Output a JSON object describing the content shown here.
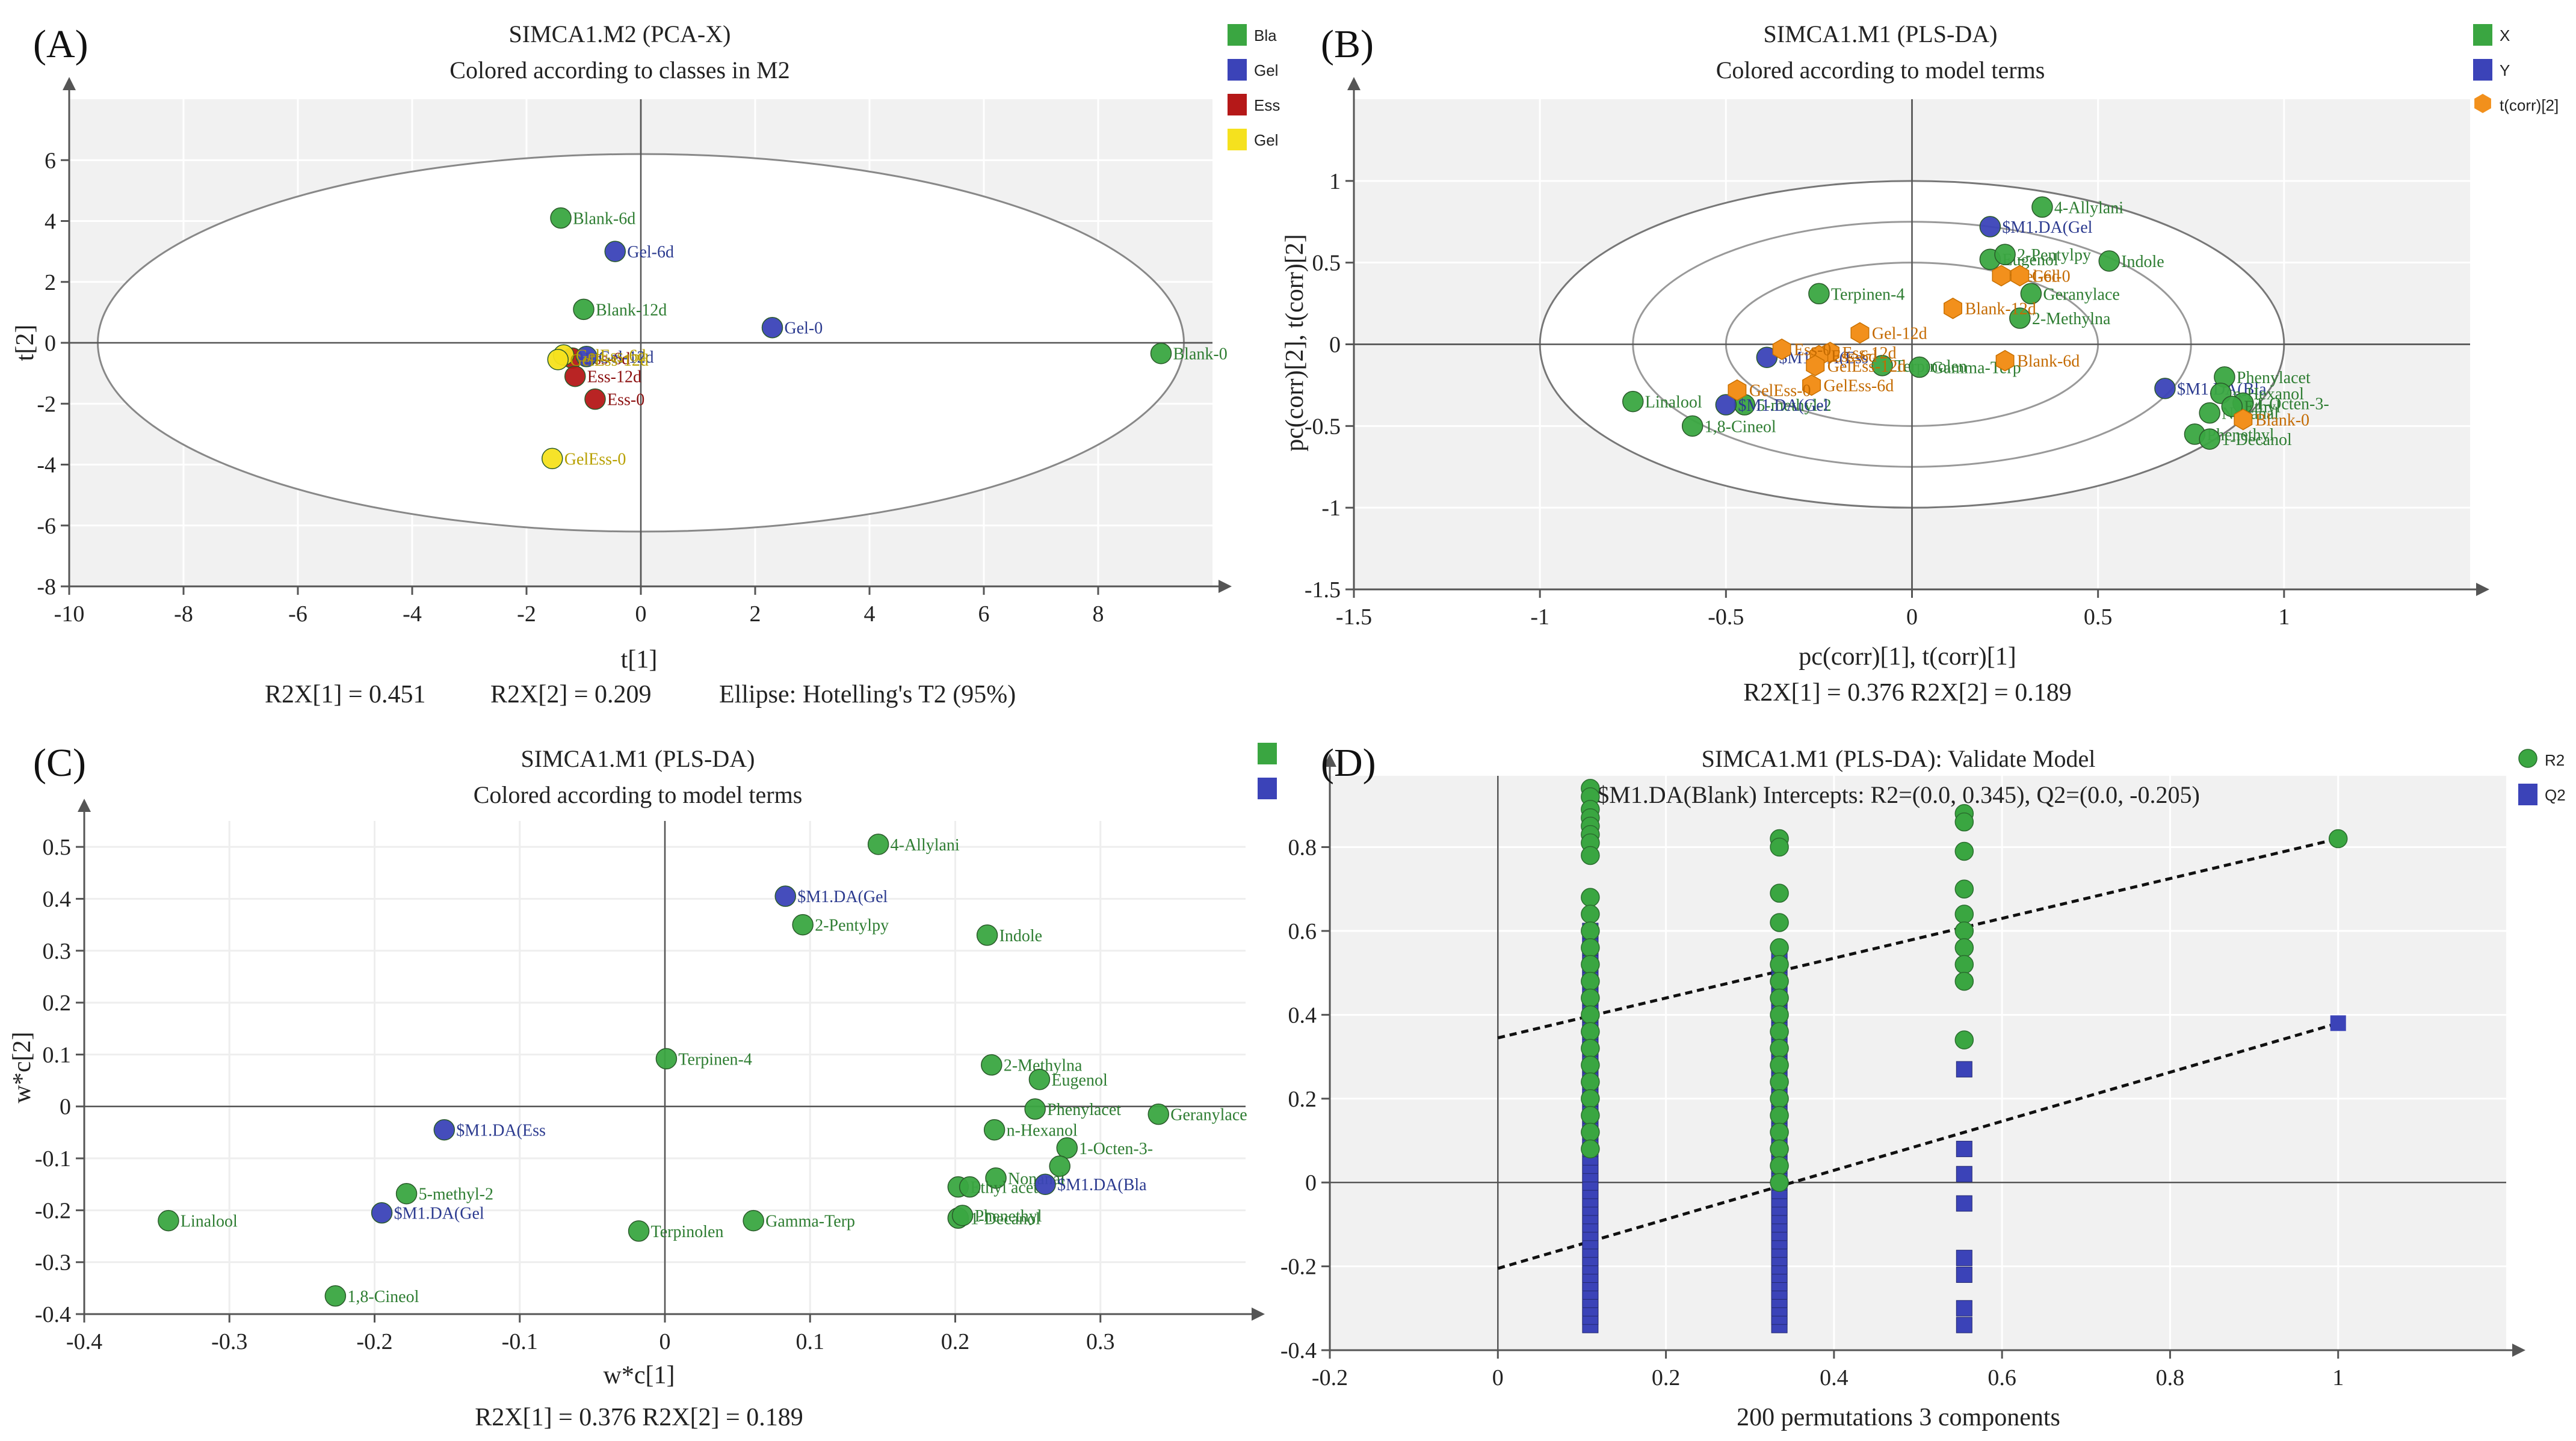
{
  "colors": {
    "green": "#3aa641",
    "blue": "#3b43b8",
    "red": "#b51818",
    "yellow": "#f5e11e",
    "orange": "#f2901c",
    "plotbg": "#f1f1f1",
    "grid": "#ffffff",
    "label_green": "#2e7d32",
    "label_blue": "#2b3a8f",
    "label_red": "#8b0f0f",
    "label_yellow": "#b8a000",
    "label_orange": "#c46a00"
  },
  "chart_data": [
    {
      "id": "A",
      "panel_label": "(A)",
      "type": "scatter",
      "title": "SIMCA1.M2 (PCA-X)",
      "subtitle": "Colored according to classes in M2",
      "xlabel": "t[1]",
      "ylabel": "t[2]",
      "xlim": [
        -10,
        10
      ],
      "ylim": [
        -8,
        8
      ],
      "xticks": [
        -10,
        -8,
        -6,
        -4,
        -2,
        0,
        2,
        4,
        6,
        8
      ],
      "yticks": [
        -8,
        -6,
        -4,
        -2,
        0,
        2,
        4,
        6
      ],
      "footer": [
        "R2X[1] = 0.451",
        "R2X[2] = 0.209",
        "Ellipse: Hotelling's T2 (95%)"
      ],
      "ellipse": {
        "cx": 0,
        "cy": 0,
        "rx": 9.5,
        "ry": 6.2
      },
      "legend": [
        {
          "label": "Bla",
          "color": "green"
        },
        {
          "label": "Gel",
          "color": "blue"
        },
        {
          "label": "Ess",
          "color": "red"
        },
        {
          "label": "Gel",
          "color": "yellow"
        }
      ],
      "points": [
        {
          "label": "Blank-6d",
          "x": -1.4,
          "y": 4.1,
          "color": "green"
        },
        {
          "label": "Gel-6d",
          "x": -0.45,
          "y": 3.0,
          "color": "blue"
        },
        {
          "label": "Blank-12d",
          "x": -1.0,
          "y": 1.1,
          "color": "green"
        },
        {
          "label": "Gel-0",
          "x": 2.3,
          "y": 0.5,
          "color": "blue"
        },
        {
          "label": "Blank-0",
          "x": 9.1,
          "y": -0.35,
          "color": "green"
        },
        {
          "label": "Ess-6d",
          "x": -1.2,
          "y": -0.5,
          "color": "red"
        },
        {
          "label": "Gel-12d",
          "x": -0.95,
          "y": -0.45,
          "color": "blue"
        },
        {
          "label": "GelEss-6d",
          "x": -1.35,
          "y": -0.4,
          "color": "yellow"
        },
        {
          "label": "GelEss-12d",
          "x": -1.45,
          "y": -0.55,
          "color": "yellow"
        },
        {
          "label": "Ess-12d",
          "x": -1.15,
          "y": -1.1,
          "color": "red"
        },
        {
          "label": "Ess-0",
          "x": -0.8,
          "y": -1.85,
          "color": "red"
        },
        {
          "label": "GelEss-0",
          "x": -1.55,
          "y": -3.8,
          "color": "yellow"
        }
      ]
    },
    {
      "id": "B",
      "panel_label": "(B)",
      "type": "scatter",
      "title": "SIMCA1.M1 (PLS-DA)",
      "subtitle": "Colored according to model terms",
      "xlabel": "pc(corr)[1], t(corr)[1]",
      "ylabel": "pc(corr)[2], t(corr)[2]",
      "xlim": [
        -1.5,
        1.5
      ],
      "ylim": [
        -1.5,
        1.5
      ],
      "xticks": [
        -1.5,
        -1,
        -0.5,
        0,
        0.5,
        1
      ],
      "yticks": [
        -1.5,
        -1,
        -0.5,
        0,
        0.5,
        1
      ],
      "footer": [
        "R2X[1] = 0.376 R2X[2] = 0.189"
      ],
      "ellipses": [
        {
          "cx": 0,
          "cy": 0,
          "rx": 1.0,
          "ry": 1.0
        },
        {
          "cx": 0,
          "cy": 0,
          "rx": 0.75,
          "ry": 0.75
        },
        {
          "cx": 0,
          "cy": 0,
          "rx": 0.5,
          "ry": 0.5
        }
      ],
      "legend": [
        {
          "label": "X",
          "color": "green",
          "shape": "square"
        },
        {
          "label": "Y",
          "color": "blue",
          "shape": "square"
        },
        {
          "label": "t(corr)[2]",
          "color": "orange",
          "shape": "hex"
        }
      ],
      "points": [
        {
          "label": "4-Allylani",
          "x": 0.35,
          "y": 0.84,
          "color": "green"
        },
        {
          "label": "$M1.DA(Gel",
          "x": 0.21,
          "y": 0.72,
          "color": "blue"
        },
        {
          "label": "Eugenol",
          "x": 0.21,
          "y": 0.52,
          "color": "green"
        },
        {
          "label": "2-Pentylpy",
          "x": 0.25,
          "y": 0.55,
          "color": "green"
        },
        {
          "label": "Indole",
          "x": 0.53,
          "y": 0.51,
          "color": "green"
        },
        {
          "label": "Geranylace",
          "x": 0.32,
          "y": 0.31,
          "color": "green"
        },
        {
          "label": "2-Methylna",
          "x": 0.29,
          "y": 0.16,
          "color": "green"
        },
        {
          "label": "Terpinen-4",
          "x": -0.25,
          "y": 0.31,
          "color": "green"
        },
        {
          "label": "$M1.DA(Ess",
          "x": -0.39,
          "y": -0.08,
          "color": "blue"
        },
        {
          "label": "Terpinolen",
          "x": -0.08,
          "y": -0.13,
          "color": "green"
        },
        {
          "label": "Gamma-Terp",
          "x": 0.02,
          "y": -0.14,
          "color": "green"
        },
        {
          "label": "5-methyl-2",
          "x": -0.45,
          "y": -0.37,
          "color": "green"
        },
        {
          "label": "Linalool",
          "x": -0.75,
          "y": -0.35,
          "color": "green"
        },
        {
          "label": "1,8-Cineol",
          "x": -0.59,
          "y": -0.5,
          "color": "green"
        },
        {
          "label": "$M1.DA(Gel",
          "x": -0.5,
          "y": -0.37,
          "color": "blue"
        },
        {
          "label": "$M1.DA(Bla",
          "x": 0.68,
          "y": -0.27,
          "color": "blue"
        },
        {
          "label": "Phenylacet",
          "x": 0.84,
          "y": -0.2,
          "color": "green"
        },
        {
          "label": "n-Hexanol",
          "x": 0.83,
          "y": -0.3,
          "color": "green"
        },
        {
          "label": "Nonanal",
          "x": 0.8,
          "y": -0.42,
          "color": "green"
        },
        {
          "label": "1-Octen-3-",
          "x": 0.89,
          "y": -0.36,
          "color": "green"
        },
        {
          "label": "Phenethyl",
          "x": 0.76,
          "y": -0.55,
          "color": "green"
        },
        {
          "label": "1-Decanol",
          "x": 0.8,
          "y": -0.58,
          "color": "green"
        },
        {
          "label": "Ethyl",
          "x": 0.86,
          "y": -0.38,
          "color": "green"
        },
        {
          "label": "Gel-6d",
          "x": 0.24,
          "y": 0.42,
          "color": "orange"
        },
        {
          "label": "Gel-0",
          "x": 0.29,
          "y": 0.42,
          "color": "orange"
        },
        {
          "label": "Blank-12d",
          "x": 0.11,
          "y": 0.22,
          "color": "orange"
        },
        {
          "label": "Gel-12d",
          "x": -0.14,
          "y": 0.07,
          "color": "orange"
        },
        {
          "label": "Ess-12d",
          "x": -0.22,
          "y": -0.05,
          "color": "orange"
        },
        {
          "label": "Ess-6d",
          "x": -0.25,
          "y": -0.07,
          "color": "orange"
        },
        {
          "label": "GelEss-12d",
          "x": -0.26,
          "y": -0.13,
          "color": "orange"
        },
        {
          "label": "GelEss-6d",
          "x": -0.27,
          "y": -0.25,
          "color": "orange"
        },
        {
          "label": "Ess-0",
          "x": -0.35,
          "y": -0.03,
          "color": "orange"
        },
        {
          "label": "GelEss-0",
          "x": -0.47,
          "y": -0.28,
          "color": "orange"
        },
        {
          "label": "Blank-6d",
          "x": 0.25,
          "y": -0.1,
          "color": "orange"
        },
        {
          "label": "Blank-0",
          "x": 0.89,
          "y": -0.46,
          "color": "orange"
        }
      ]
    },
    {
      "id": "C",
      "panel_label": "(C)",
      "type": "scatter",
      "title": "SIMCA1.M1 (PLS-DA)",
      "subtitle": "Colored according to model terms",
      "xlabel": "w*c[1]",
      "ylabel": "w*c[2]",
      "xlim": [
        -0.4,
        0.4
      ],
      "ylim": [
        -0.4,
        0.55
      ],
      "xticks": [
        -0.4,
        -0.3,
        -0.2,
        -0.1,
        0,
        0.1,
        0.2,
        0.3
      ],
      "yticks": [
        -0.4,
        -0.3,
        -0.2,
        -0.1,
        0,
        0.1,
        0.2,
        0.3,
        0.4,
        0.5
      ],
      "footer": [
        "R2X[1] = 0.376 R2X[2] = 0.189"
      ],
      "legend": [
        {
          "label": "",
          "color": "green"
        },
        {
          "label": "",
          "color": "blue"
        }
      ],
      "points": [
        {
          "label": "4-Allylani",
          "x": 0.147,
          "y": 0.505,
          "color": "green"
        },
        {
          "label": "$M1.DA(Gel",
          "x": 0.083,
          "y": 0.405,
          "color": "blue"
        },
        {
          "label": "2-Pentylpy",
          "x": 0.095,
          "y": 0.35,
          "color": "green"
        },
        {
          "label": "Indole",
          "x": 0.222,
          "y": 0.33,
          "color": "green"
        },
        {
          "label": "Terpinen-4",
          "x": 0.001,
          "y": 0.092,
          "color": "green"
        },
        {
          "label": "2-Methylna",
          "x": 0.225,
          "y": 0.08,
          "color": "green"
        },
        {
          "label": "Eugenol",
          "x": 0.258,
          "y": 0.052,
          "color": "green"
        },
        {
          "label": "Phenylacet",
          "x": 0.255,
          "y": -0.005,
          "color": "green"
        },
        {
          "label": "Geranylace",
          "x": 0.34,
          "y": -0.015,
          "color": "green"
        },
        {
          "label": "$M1.DA(Ess",
          "x": -0.152,
          "y": -0.045,
          "color": "blue"
        },
        {
          "label": "n-Hexanol",
          "x": 0.227,
          "y": -0.045,
          "color": "green"
        },
        {
          "label": "1-Octen-3-",
          "x": 0.277,
          "y": -0.08,
          "color": "green"
        },
        {
          "label": "Nonanal",
          "x": 0.228,
          "y": -0.138,
          "color": "green"
        },
        {
          "label": "Ethyl acet",
          "x": 0.202,
          "y": -0.155,
          "color": "green"
        },
        {
          "label": "",
          "x": 0.21,
          "y": -0.155,
          "color": "green"
        },
        {
          "label": "$M1.DA(Bla",
          "x": 0.262,
          "y": -0.15,
          "color": "blue"
        },
        {
          "label": "",
          "x": 0.272,
          "y": -0.115,
          "color": "green"
        },
        {
          "label": "5-methyl-2",
          "x": -0.178,
          "y": -0.168,
          "color": "green"
        },
        {
          "label": "$M1.DA(Gel",
          "x": -0.195,
          "y": -0.205,
          "color": "blue"
        },
        {
          "label": "Linalool",
          "x": -0.342,
          "y": -0.22,
          "color": "green"
        },
        {
          "label": "Gamma-Terp",
          "x": 0.061,
          "y": -0.22,
          "color": "green"
        },
        {
          "label": "1-Decanol",
          "x": 0.202,
          "y": -0.215,
          "color": "green"
        },
        {
          "label": "Phenethyl",
          "x": 0.205,
          "y": -0.21,
          "color": "green"
        },
        {
          "label": "Terpinolen",
          "x": -0.018,
          "y": -0.24,
          "color": "green"
        },
        {
          "label": "1,8-Cineol",
          "x": -0.227,
          "y": -0.365,
          "color": "green"
        }
      ]
    },
    {
      "id": "D",
      "panel_label": "(D)",
      "type": "scatter",
      "title": "SIMCA1.M1 (PLS-DA): Validate Model",
      "subtitle": "$M1.DA(Blank) Intercepts: R2=(0.0, 0.345), Q2=(0.0, -0.205)",
      "xlabel": "200 permutations 3 components",
      "ylabel": "",
      "xlim": [
        -0.2,
        1.2
      ],
      "ylim": [
        -0.4,
        0.97
      ],
      "xticks": [
        -0.2,
        0,
        0.2,
        0.4,
        0.6,
        0.8,
        1
      ],
      "yticks": [
        -0.4,
        -0.2,
        0,
        0.2,
        0.4,
        0.6,
        0.8
      ],
      "legend": [
        {
          "label": "R2",
          "color": "green",
          "shape": "circle"
        },
        {
          "label": "Q2",
          "color": "blue",
          "shape": "square"
        }
      ],
      "R2_intercept": 0.345,
      "Q2_intercept": -0.205,
      "R2_final": {
        "x": 1,
        "y": 0.82
      },
      "Q2_final": {
        "x": 1,
        "y": 0.38
      },
      "R2_columns": [
        {
          "x": 0.11,
          "y": [
            0.94,
            0.92,
            0.89,
            0.87,
            0.85,
            0.83,
            0.81,
            0.78,
            0.68,
            0.64,
            0.6,
            0.56,
            0.52,
            0.48,
            0.44,
            0.4,
            0.36,
            0.32,
            0.28,
            0.24,
            0.2,
            0.16,
            0.12,
            0.08
          ]
        },
        {
          "x": 0.335,
          "y": [
            0.82,
            0.8,
            0.69,
            0.62,
            0.56,
            0.52,
            0.48,
            0.44,
            0.4,
            0.36,
            0.32,
            0.28,
            0.24,
            0.2,
            0.16,
            0.12,
            0.08,
            0.04,
            0.0
          ]
        },
        {
          "x": 0.555,
          "y": [
            0.88,
            0.86,
            0.79,
            0.7,
            0.64,
            0.6,
            0.56,
            0.52,
            0.48,
            0.34
          ]
        }
      ],
      "Q2_columns": [
        {
          "x": 0.11,
          "y_from": -0.34,
          "y_to": 0.6
        },
        {
          "x": 0.335,
          "y_from": -0.34,
          "y_to": 0.54
        },
        {
          "x": 0.555,
          "y": [
            0.27,
            0.08,
            0.02,
            -0.05,
            -0.18,
            -0.22,
            -0.3,
            -0.34
          ]
        }
      ]
    }
  ]
}
